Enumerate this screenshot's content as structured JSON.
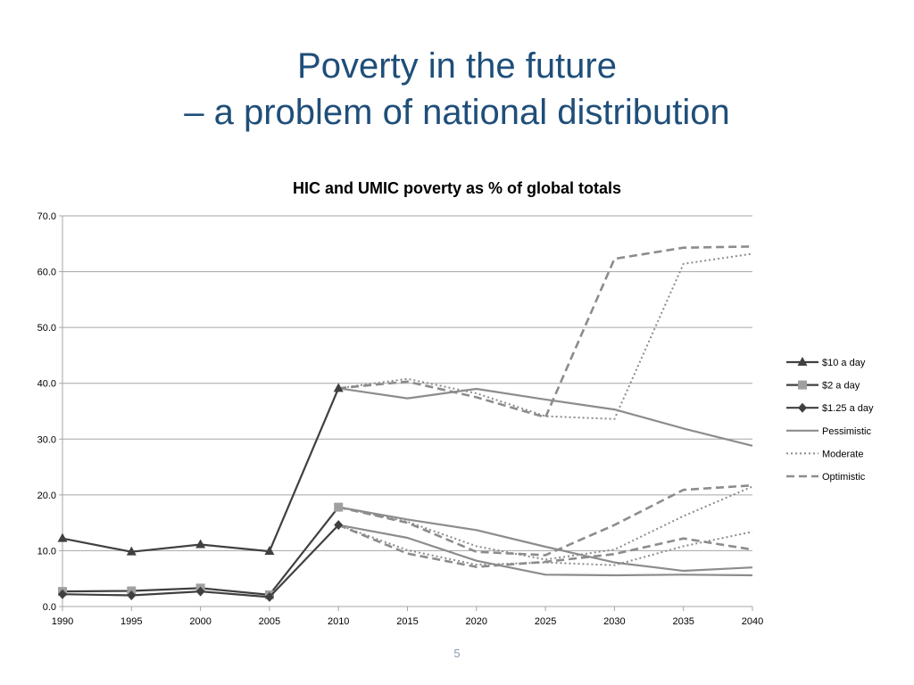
{
  "slide": {
    "title_line1": "Poverty in the future",
    "title_line2": "– a problem of national distribution",
    "page_number": "5"
  },
  "chart_data": {
    "type": "line",
    "title": "HIC and UMIC poverty as % of global totals",
    "xlabel": "",
    "ylabel": "",
    "x": [
      1990,
      1995,
      2000,
      2005,
      2010,
      2015,
      2020,
      2025,
      2030,
      2035,
      2040
    ],
    "x_tick_labels": [
      "1990",
      "1995",
      "2000",
      "2005",
      "2010",
      "2015",
      "2020",
      "2025",
      "2030",
      "2035",
      "2040"
    ],
    "y_tick_labels": [
      "0.0",
      "10.0",
      "20.0",
      "30.0",
      "40.0",
      "50.0",
      "60.0",
      "70.0"
    ],
    "ylim": [
      0,
      70
    ],
    "grid": true,
    "legend_position": "right",
    "legend": [
      {
        "label": "$10 a day",
        "style": "solid-dark",
        "marker": "triangle"
      },
      {
        "label": "$2 a day",
        "style": "solid-dark",
        "marker": "square"
      },
      {
        "label": "$1.25 a day",
        "style": "solid-dark",
        "marker": "diamond"
      },
      {
        "label": "Pessimistic",
        "style": "solid-grey",
        "marker": "none"
      },
      {
        "label": "Moderate",
        "style": "dotted-grey",
        "marker": "none"
      },
      {
        "label": "Optimistic",
        "style": "dashed-grey",
        "marker": "none"
      }
    ],
    "series": [
      {
        "name": "$10 a day",
        "style": "solid-dark",
        "marker": "triangle",
        "x": [
          1990,
          1995,
          2000,
          2005,
          2010
        ],
        "values": [
          12.2,
          9.8,
          11.1,
          9.9,
          39.1
        ]
      },
      {
        "name": "$2 a day",
        "style": "solid-dark",
        "marker": "square",
        "x": [
          1990,
          1995,
          2000,
          2005,
          2010
        ],
        "values": [
          2.7,
          2.8,
          3.3,
          2.1,
          17.8
        ]
      },
      {
        "name": "$1.25 a day",
        "style": "solid-dark",
        "marker": "diamond",
        "x": [
          1990,
          1995,
          2000,
          2005,
          2010
        ],
        "values": [
          2.2,
          2.0,
          2.7,
          1.7,
          14.6
        ]
      },
      {
        "style": "solid-grey",
        "x": [
          2010,
          2015,
          2020,
          2025,
          2030,
          2035,
          2040
        ],
        "values": [
          39.1,
          37.3,
          39.0,
          37.1,
          35.3,
          31.9,
          28.8
        ]
      },
      {
        "style": "dotted-grey",
        "x": [
          2010,
          2015,
          2020,
          2025,
          2030,
          2035,
          2040
        ],
        "values": [
          39.1,
          40.8,
          38.2,
          34.1,
          33.6,
          61.4,
          63.2
        ]
      },
      {
        "style": "dashed-grey",
        "x": [
          2010,
          2015,
          2020,
          2025,
          2030,
          2035,
          2040
        ],
        "values": [
          39.1,
          40.3,
          37.5,
          33.9,
          62.3,
          64.3,
          64.5
        ]
      },
      {
        "style": "solid-grey",
        "x": [
          2010,
          2015,
          2020,
          2025,
          2030,
          2035,
          2040
        ],
        "values": [
          17.8,
          15.6,
          13.7,
          10.7,
          7.9,
          6.4,
          7.0
        ]
      },
      {
        "style": "dotted-grey",
        "x": [
          2010,
          2015,
          2020,
          2025,
          2030,
          2035,
          2040
        ],
        "values": [
          17.8,
          15.2,
          10.8,
          8.4,
          10.2,
          16.2,
          21.5
        ]
      },
      {
        "style": "dashed-grey",
        "x": [
          2010,
          2015,
          2020,
          2025,
          2030,
          2035,
          2040
        ],
        "values": [
          17.8,
          15.0,
          9.8,
          9.2,
          14.6,
          20.9,
          21.7
        ]
      },
      {
        "style": "solid-grey",
        "x": [
          2010,
          2015,
          2020,
          2025,
          2030,
          2035,
          2040
        ],
        "values": [
          14.6,
          12.3,
          8.2,
          5.7,
          5.6,
          5.7,
          5.6
        ]
      },
      {
        "style": "dotted-grey",
        "x": [
          2010,
          2015,
          2020,
          2025,
          2030,
          2035,
          2040
        ],
        "values": [
          14.6,
          10.1,
          7.5,
          7.9,
          7.4,
          10.8,
          13.4
        ]
      },
      {
        "style": "dashed-grey",
        "x": [
          2010,
          2015,
          2020,
          2025,
          2030,
          2035,
          2040
        ],
        "values": [
          14.6,
          9.5,
          7.1,
          8.0,
          9.4,
          12.2,
          10.2
        ]
      }
    ]
  },
  "colors": {
    "title": "#1f4e79",
    "dark_line": "#404040",
    "grey_line": "#8c8c8c",
    "marker_grey": "#a0a0a0",
    "gridline": "#a6a6a6",
    "page_number": "#8a9bb0"
  }
}
